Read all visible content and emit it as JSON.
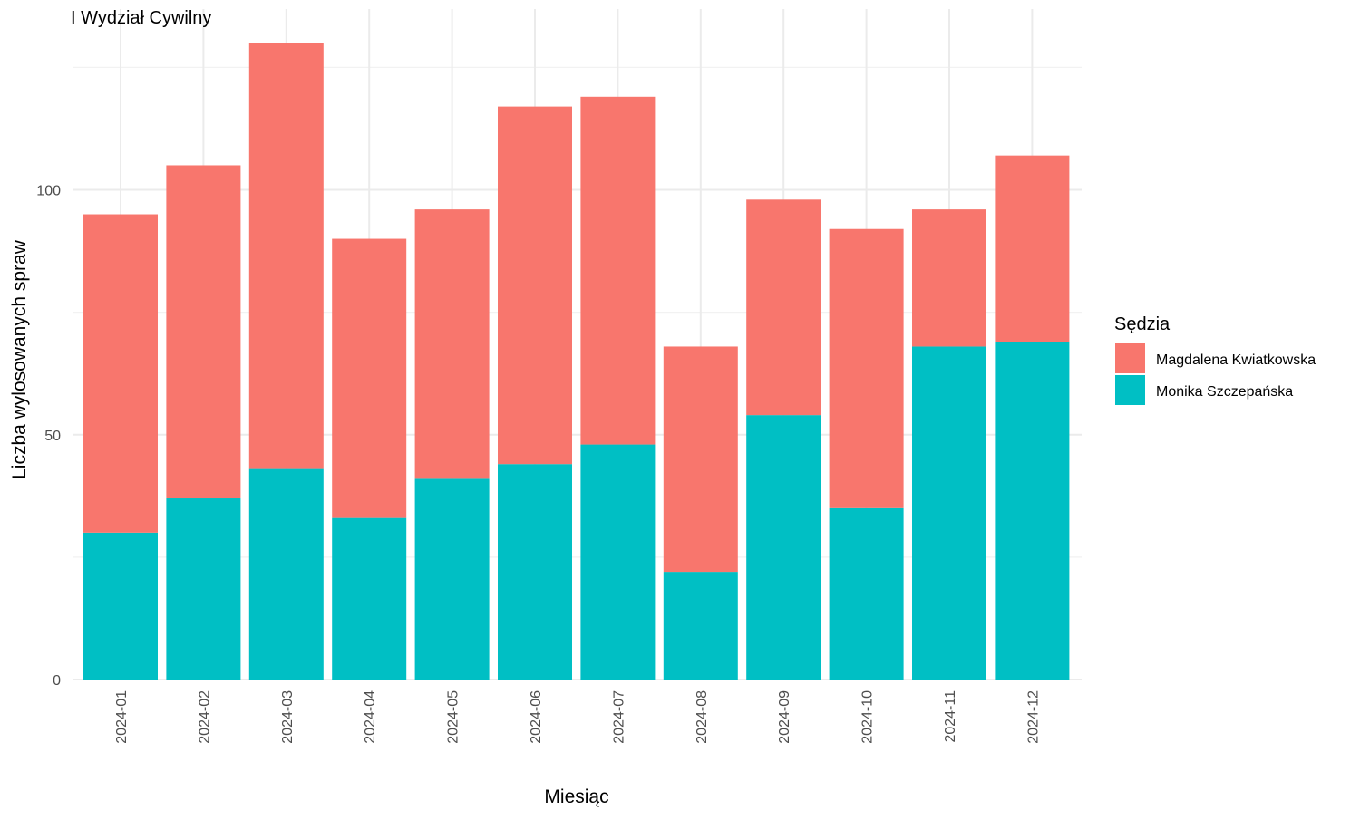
{
  "chart_data": {
    "type": "bar",
    "stacked": true,
    "title": "I Wydział Cywilny",
    "xlabel": "Miesiąc",
    "ylabel": "Liczba wylosowanych spraw",
    "ylim": [
      0,
      130
    ],
    "yticks": [
      0,
      50,
      100
    ],
    "grid": true,
    "legend": {
      "title": "Sędzia",
      "position": "right"
    },
    "categories": [
      "2024-01",
      "2024-02",
      "2024-03",
      "2024-04",
      "2024-05",
      "2024-06",
      "2024-07",
      "2024-08",
      "2024-09",
      "2024-10",
      "2024-11",
      "2024-12"
    ],
    "series": [
      {
        "name": "Monika Szczepańska",
        "color": "#00BFC4",
        "values": [
          30,
          37,
          43,
          33,
          41,
          44,
          48,
          22,
          54,
          35,
          68,
          69
        ]
      },
      {
        "name": "Magdalena Kwiatkowska",
        "color": "#F8766D",
        "values": [
          65,
          68,
          87,
          57,
          55,
          73,
          71,
          46,
          44,
          57,
          28,
          38
        ]
      }
    ],
    "legend_order": [
      "Magdalena Kwiatkowska",
      "Monika Szczepańska"
    ]
  }
}
